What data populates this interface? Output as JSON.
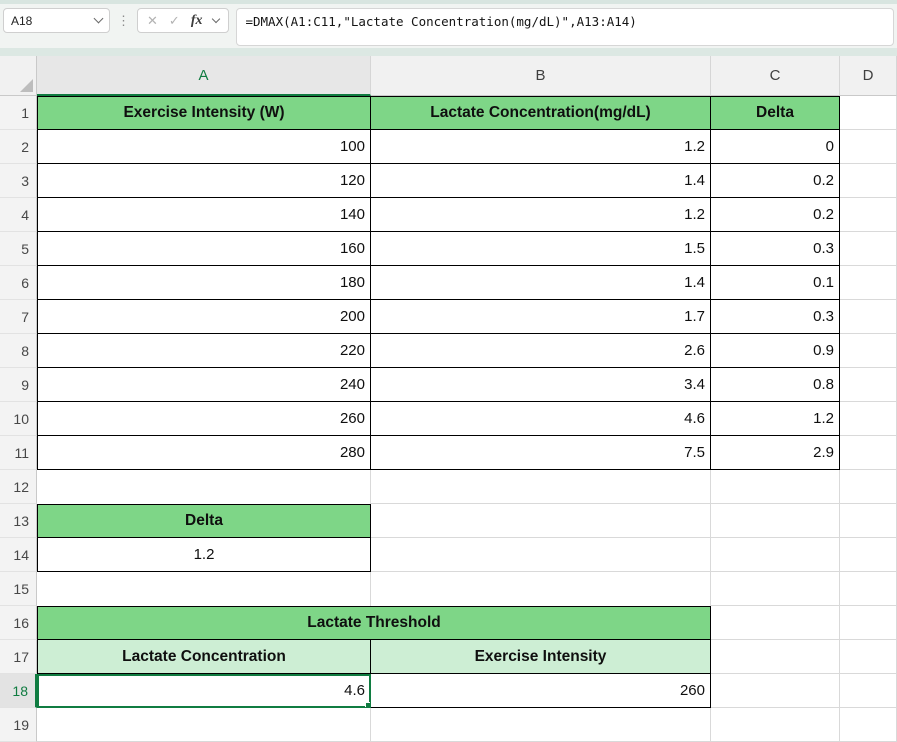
{
  "formula_bar": {
    "name_box_value": "A18",
    "cancel_glyph": "✕",
    "enter_glyph": "✓",
    "fx_glyph": "fx",
    "formula": "=DMAX(A1:C11,\"Lactate Concentration(mg/dL)\",A13:A14)"
  },
  "sheet": {
    "columns": [
      "A",
      "B",
      "C",
      "D"
    ],
    "rows": [
      "1",
      "2",
      "3",
      "4",
      "5",
      "6",
      "7",
      "8",
      "9",
      "10",
      "11",
      "12",
      "13",
      "14",
      "15",
      "16",
      "17",
      "18",
      "19"
    ],
    "main_table": {
      "headers": [
        "Exercise Intensity (W)",
        "Lactate Concentration(mg/dL)",
        "Delta"
      ],
      "data": [
        [
          "100",
          "1.2",
          "0"
        ],
        [
          "120",
          "1.4",
          "0.2"
        ],
        [
          "140",
          "1.2",
          "0.2"
        ],
        [
          "160",
          "1.5",
          "0.3"
        ],
        [
          "180",
          "1.4",
          "0.1"
        ],
        [
          "200",
          "1.7",
          "0.3"
        ],
        [
          "220",
          "2.6",
          "0.9"
        ],
        [
          "240",
          "3.4",
          "0.8"
        ],
        [
          "260",
          "4.6",
          "1.2"
        ],
        [
          "280",
          "7.5",
          "2.9"
        ]
      ]
    },
    "criteria_table": {
      "header": "Delta",
      "value": "1.2"
    },
    "result_table": {
      "title": "Lactate Threshold",
      "col1_header": "Lactate Concentration",
      "col2_header": "Exercise Intensity",
      "col1_value": "4.6",
      "col2_value": "260"
    },
    "selection": {
      "active_cell": "A18"
    }
  },
  "colors": {
    "header_green": "#7ed687",
    "light_green": "#cdeed4",
    "selection_green": "#107C41"
  }
}
